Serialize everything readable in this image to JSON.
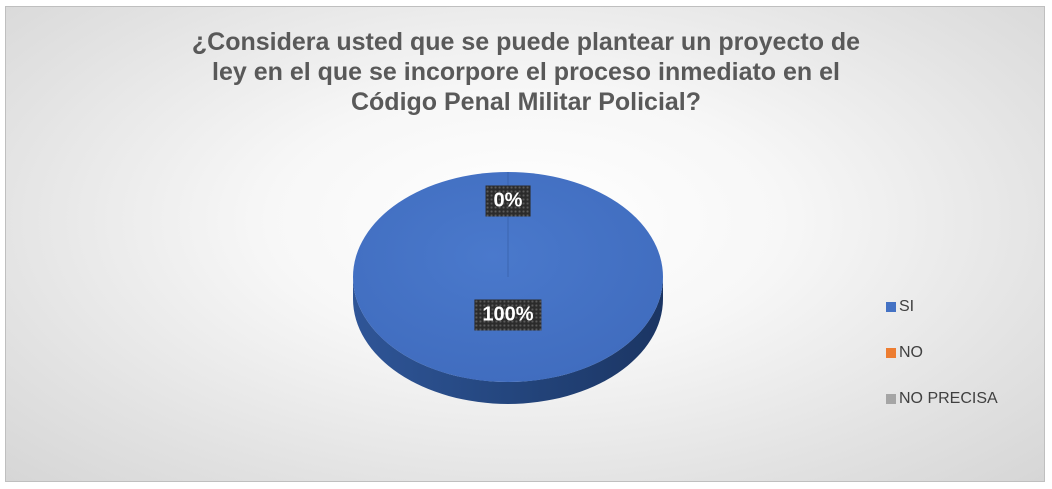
{
  "chart_data": {
    "type": "pie",
    "title": "¿Considera usted que se puede plantear un proyecto de ley en el que se incorpore el proceso inmediato en el Código Penal Militar Policial?",
    "title_lines": [
      "¿Considera usted que se puede plantear un proyecto de",
      "ley en el que se incorpore el proceso inmediato en el",
      "Código Penal Militar Policial?"
    ],
    "style": "3d",
    "legend_position": "right",
    "slices": [
      {
        "label": "SI",
        "value": 100,
        "color": "#4472C4"
      },
      {
        "label": "NO",
        "value": 0,
        "color": "#ED7D31"
      },
      {
        "label": "NO PRECISA",
        "value": 0,
        "color": "#A5A5A5"
      }
    ],
    "data_labels": [
      "100%",
      "0%"
    ]
  }
}
